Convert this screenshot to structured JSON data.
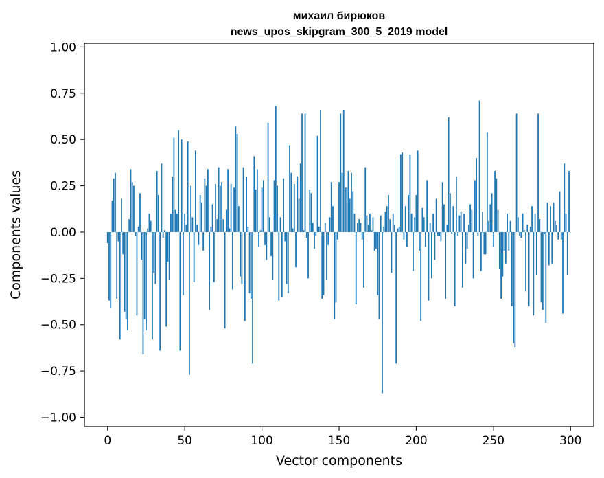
{
  "chart_data": {
    "type": "bar",
    "title_lines": [
      "михаил бирюков",
      "news_upos_skipgram_300_5_2019 model"
    ],
    "xlabel": "Vector components",
    "ylabel": "Components values",
    "xlim": [
      -15,
      315
    ],
    "ylim": [
      -1.05,
      1.02
    ],
    "xticks": [
      0,
      50,
      100,
      150,
      200,
      250,
      300
    ],
    "yticks": [
      1.0,
      0.75,
      0.5,
      0.25,
      0.0,
      -0.25,
      -0.5,
      -0.75,
      -1.0
    ],
    "ytick_labels": [
      "1.00",
      "0.75",
      "0.50",
      "0.25",
      "0.00",
      "−0.25",
      "−0.50",
      "−0.75",
      "−1.00"
    ],
    "grid": false,
    "bar_color": "#1f77b4",
    "values": [
      -0.06,
      -0.37,
      -0.41,
      0.17,
      0.29,
      0.32,
      -0.36,
      -0.05,
      -0.58,
      0.18,
      -0.12,
      -0.43,
      -0.47,
      -0.53,
      0.07,
      0.34,
      0.27,
      0.25,
      -0.02,
      -0.45,
      0.03,
      0.21,
      -0.15,
      -0.66,
      -0.47,
      -0.53,
      0.02,
      0.1,
      0.06,
      -0.58,
      -0.22,
      -0.28,
      0.33,
      0.2,
      -0.64,
      0.37,
      -0.03,
      0.01,
      -0.51,
      -0.16,
      -0.26,
      0.1,
      0.3,
      0.51,
      0.12,
      0.1,
      0.55,
      -0.64,
      0.5,
      -0.34,
      0.1,
      0.04,
      0.49,
      -0.77,
      0.25,
      0.08,
      -0.27,
      0.44,
      0.04,
      -0.07,
      0.2,
      0.16,
      -0.1,
      0.29,
      0.25,
      0.34,
      -0.42,
      0.03,
      0.15,
      -0.27,
      0.26,
      0.07,
      0.35,
      0.25,
      0.27,
      0.07,
      -0.52,
      0.12,
      0.34,
      0.02,
      0.26,
      -0.31,
      0.24,
      0.57,
      0.53,
      0.14,
      -0.24,
      -0.28,
      0.35,
      -0.48,
      0.3,
      0.03,
      -0.33,
      -0.36,
      -0.71,
      0.41,
      0.23,
      0.34,
      -0.08,
      0.01,
      0.24,
      0.28,
      -0.07,
      -0.15,
      0.59,
      0.08,
      -0.13,
      -0.26,
      0.28,
      0.68,
      0.25,
      -0.37,
      0.08,
      -0.35,
      0.29,
      -0.05,
      -0.28,
      -0.33,
      0.47,
      0.32,
      0.02,
      0.26,
      -0.19,
      0.3,
      0.18,
      0.37,
      0.64,
      0.01,
      0.64,
      -0.03,
      -0.25,
      0.23,
      0.21,
      0.05,
      -0.09,
      -0.02,
      0.52,
      0.03,
      0.66,
      -0.36,
      -0.34,
      0.05,
      -0.26,
      -0.07,
      0.08,
      0.27,
      0.14,
      -0.47,
      -0.38,
      -0.04,
      0.27,
      0.64,
      0.32,
      0.66,
      0.24,
      0.24,
      0.33,
      0.18,
      0.32,
      0.22,
      0.1,
      -0.39,
      0.05,
      0.07,
      0.05,
      -0.04,
      -0.3,
      0.35,
      0.09,
      0.04,
      0.1,
      0.01,
      0.08,
      -0.1,
      -0.09,
      -0.34,
      -0.47,
      0.09,
      -0.87,
      0.03,
      0.11,
      0.14,
      0.2,
      0.07,
      -0.22,
      0.1,
      0.04,
      -0.71,
      0.02,
      0.03,
      0.42,
      0.43,
      -0.04,
      0.14,
      -0.08,
      0.2,
      0.42,
      0.1,
      -0.21,
      0.08,
      0.2,
      0.44,
      -0.1,
      -0.48,
      0.13,
      0.08,
      -0.08,
      0.28,
      -0.37,
      0.05,
      -0.25,
      0.1,
      -0.15,
      0.18,
      -0.02,
      -0.02,
      -0.05,
      0.27,
      0.15,
      -0.36,
      0.04,
      0.62,
      0.21,
      -0.01,
      0.14,
      -0.4,
      0.3,
      -0.02,
      0.09,
      0.11,
      -0.3,
      0.1,
      -0.17,
      -0.09,
      0.04,
      0.15,
      0.12,
      -0.25,
      0.28,
      0.4,
      -0.02,
      0.71,
      -0.21,
      0.11,
      -0.12,
      -0.12,
      0.54,
      0.06,
      0.15,
      0.21,
      -0.08,
      0.33,
      0.29,
      0.12,
      -0.2,
      -0.36,
      -0.24,
      -0.1,
      -0.17,
      0.1,
      -0.1,
      0.06,
      -0.4,
      -0.6,
      -0.62,
      0.64,
      0.08,
      -0.02,
      -0.03,
      0.1,
      0.01,
      -0.32,
      0.04,
      -0.4,
      0.03,
      0.14,
      -0.45,
      0.1,
      -0.23,
      0.64,
      0.07,
      -0.38,
      -0.42,
      -0.01,
      -0.49,
      0.16,
      -0.18,
      0.14,
      -0.17,
      0.16,
      0.06,
      0.04,
      -0.04,
      0.22,
      -0.04,
      -0.44,
      0.37,
      0.1,
      -0.23,
      0.33
    ]
  }
}
